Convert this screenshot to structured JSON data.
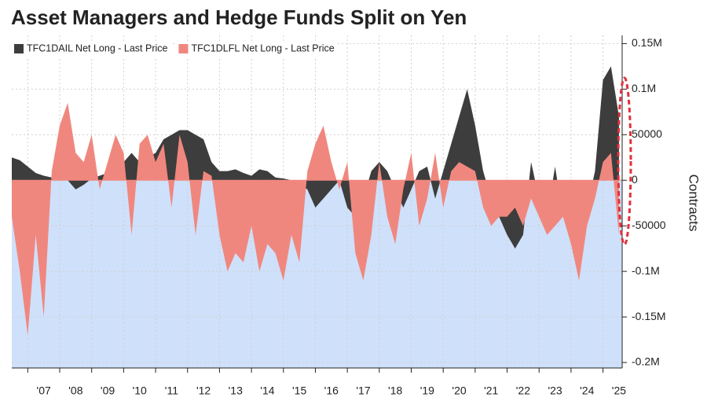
{
  "chart_data": {
    "type": "area",
    "title": "Asset Managers and Hedge Funds Split on Yen",
    "y_label": "Contracts",
    "x": [
      2006.5,
      2006.75,
      2007,
      2007.25,
      2007.5,
      2007.75,
      2008,
      2008.25,
      2008.5,
      2008.75,
      2009,
      2009.25,
      2009.5,
      2009.75,
      2010,
      2010.25,
      2010.5,
      2010.75,
      2011,
      2011.25,
      2011.5,
      2011.75,
      2012,
      2012.25,
      2012.5,
      2012.75,
      2013,
      2013.25,
      2013.5,
      2013.75,
      2014,
      2014.25,
      2014.5,
      2014.75,
      2015,
      2015.25,
      2015.5,
      2015.75,
      2016,
      2016.25,
      2016.5,
      2016.75,
      2017,
      2017.25,
      2017.5,
      2017.75,
      2018,
      2018.25,
      2018.5,
      2018.75,
      2019,
      2019.25,
      2019.5,
      2019.75,
      2020,
      2020.25,
      2020.5,
      2020.75,
      2021,
      2021.25,
      2021.5,
      2021.75,
      2022,
      2022.25,
      2022.5,
      2022.75,
      2023,
      2023.25,
      2023.5,
      2023.75,
      2024,
      2024.25,
      2024.5,
      2024.75,
      2025,
      2025.25,
      2025.5
    ],
    "series": [
      {
        "name": "TFC1DAIL Net Long - Last Price",
        "color": "#3d3d3d",
        "values": [
          25000,
          22000,
          15000,
          8000,
          5000,
          3000,
          5000,
          0,
          -10000,
          -5000,
          2000,
          5000,
          8000,
          15000,
          20000,
          30000,
          20000,
          25000,
          30000,
          45000,
          50000,
          55000,
          55000,
          50000,
          45000,
          20000,
          10000,
          10000,
          12000,
          8000,
          5000,
          12000,
          10000,
          3000,
          2000,
          0,
          -5000,
          -10000,
          -30000,
          -20000,
          -10000,
          0,
          -30000,
          -40000,
          -20000,
          10000,
          20000,
          10000,
          -10000,
          -30000,
          -10000,
          10000,
          15000,
          -20000,
          10000,
          40000,
          70000,
          100000,
          60000,
          10000,
          -20000,
          -40000,
          -60000,
          -75000,
          -60000,
          20000,
          -20000,
          -40000,
          15000,
          -40000,
          -50000,
          -60000,
          -30000,
          10000,
          110000,
          125000,
          70000
        ]
      },
      {
        "name": "TFC1DLFL Net Long - Last Price",
        "color": "#f0877e",
        "values": [
          -40000,
          -100000,
          -170000,
          -60000,
          -150000,
          10000,
          60000,
          85000,
          30000,
          20000,
          50000,
          -10000,
          20000,
          50000,
          30000,
          -60000,
          40000,
          50000,
          20000,
          40000,
          -30000,
          50000,
          20000,
          -60000,
          10000,
          5000,
          -60000,
          -100000,
          -80000,
          -90000,
          -50000,
          -100000,
          -70000,
          -80000,
          -110000,
          -60000,
          -90000,
          10000,
          40000,
          60000,
          20000,
          -10000,
          20000,
          -80000,
          -110000,
          -60000,
          20000,
          -40000,
          -70000,
          -10000,
          30000,
          -50000,
          -20000,
          30000,
          -30000,
          10000,
          20000,
          15000,
          10000,
          -30000,
          -50000,
          -40000,
          -40000,
          -30000,
          -50000,
          -20000,
          -40000,
          -60000,
          -50000,
          -40000,
          -70000,
          -110000,
          -50000,
          -20000,
          20000,
          30000,
          -60000
        ]
      }
    ],
    "xlim": [
      2006.5,
      2025.6
    ],
    "xticks": [
      {
        "value": 2007,
        "label": "'07"
      },
      {
        "value": 2008,
        "label": "'08"
      },
      {
        "value": 2009,
        "label": "'09"
      },
      {
        "value": 2010,
        "label": "'10"
      },
      {
        "value": 2011,
        "label": "'11"
      },
      {
        "value": 2012,
        "label": "'12"
      },
      {
        "value": 2013,
        "label": "'13"
      },
      {
        "value": 2014,
        "label": "'14"
      },
      {
        "value": 2015,
        "label": "'15"
      },
      {
        "value": 2016,
        "label": "'16"
      },
      {
        "value": 2017,
        "label": "'17"
      },
      {
        "value": 2018,
        "label": "'18"
      },
      {
        "value": 2019,
        "label": "'19"
      },
      {
        "value": 2020,
        "label": "'20"
      },
      {
        "value": 2021,
        "label": "'21"
      },
      {
        "value": 2022,
        "label": "'22"
      },
      {
        "value": 2023,
        "label": "'23"
      },
      {
        "value": 2024,
        "label": "'24"
      },
      {
        "value": 2025,
        "label": "'25"
      }
    ],
    "ylim": [
      -206000,
      159000
    ],
    "yticks": [
      {
        "value": 150000,
        "label": "0.15M"
      },
      {
        "value": 100000,
        "label": "0.1M"
      },
      50000,
      0,
      -50000,
      {
        "value": -100000,
        "label": "-0.1M"
      },
      {
        "value": -150000,
        "label": "-0.15M"
      },
      {
        "value": -200000,
        "label": "-0.2M"
      }
    ],
    "grid": true,
    "legend": "top-left"
  }
}
